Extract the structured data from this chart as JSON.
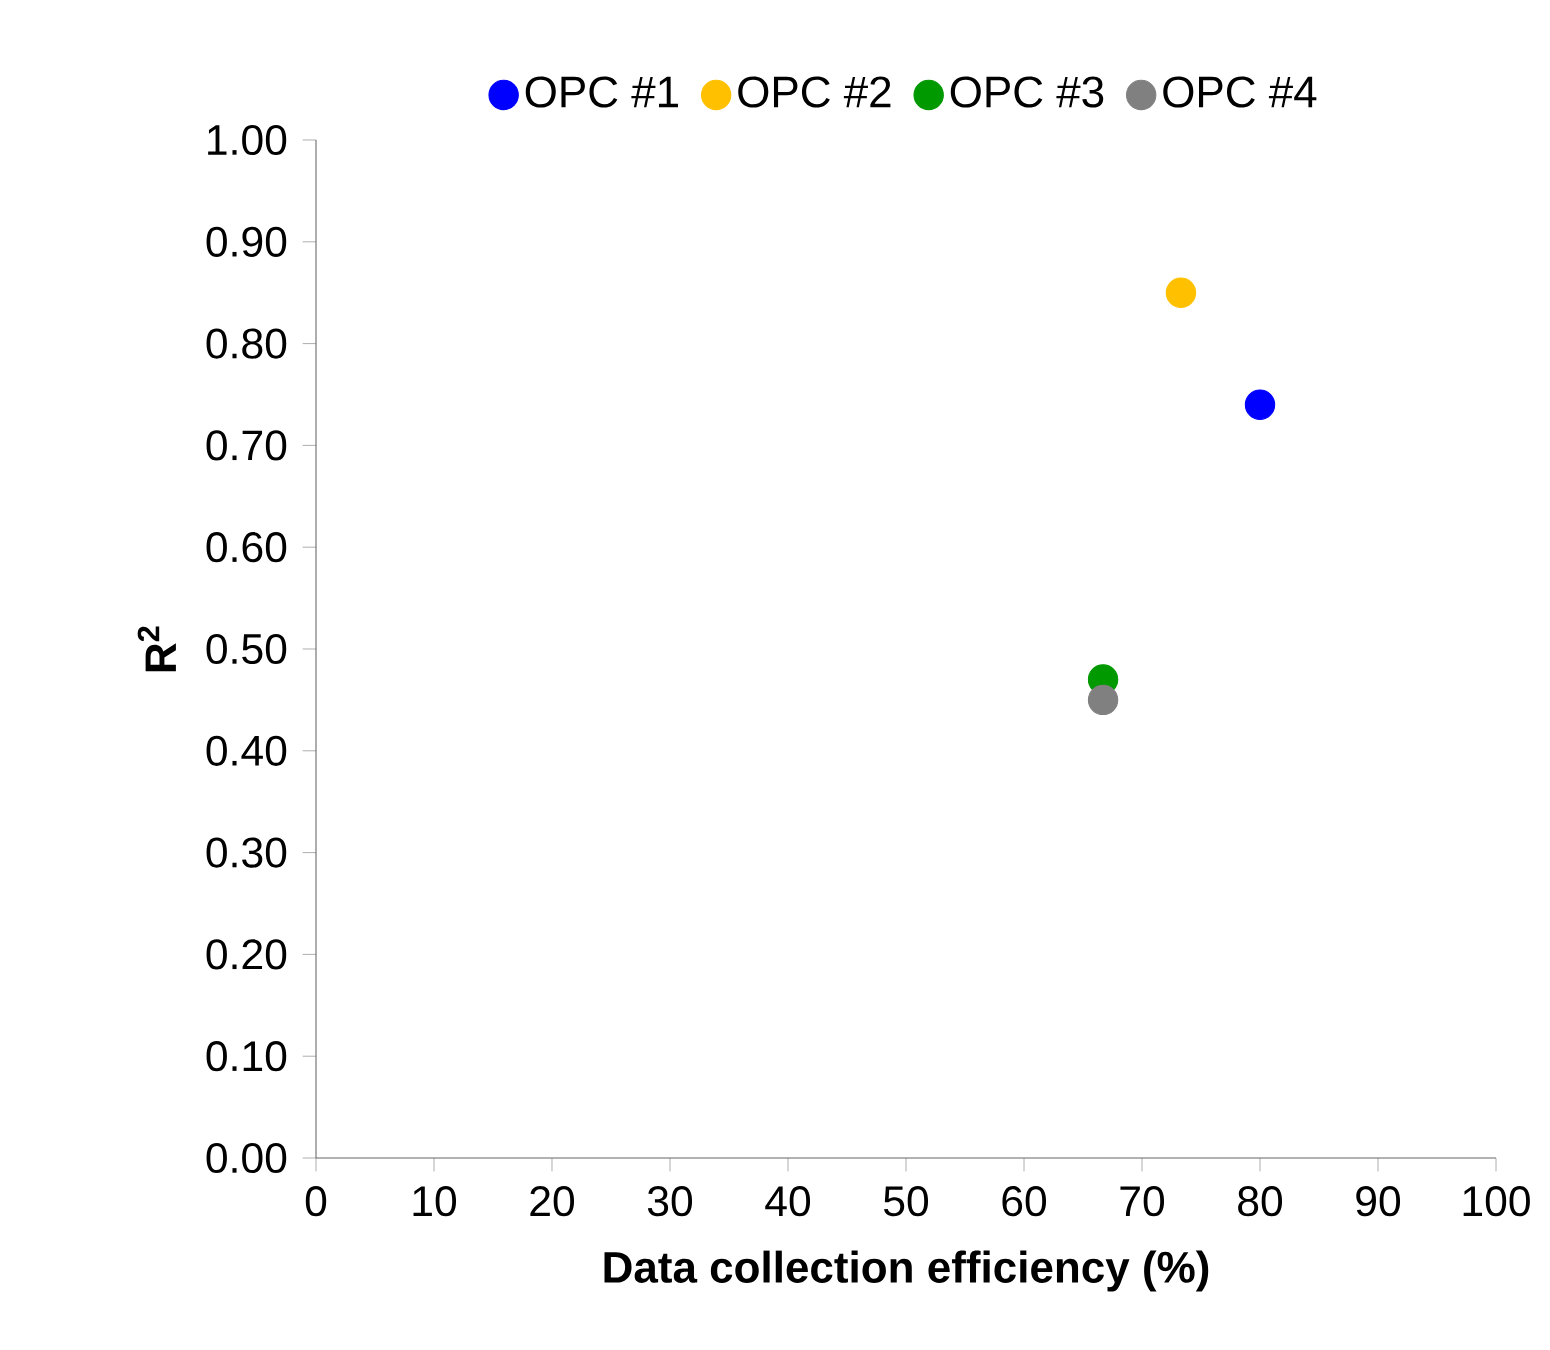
{
  "chart_data": {
    "type": "scatter",
    "xlabel": "Data collection efficiency (%)",
    "ylabel": "R$^{2}$",
    "marker": "circle",
    "legend": "top",
    "grid": false,
    "xlim": [
      0,
      100
    ],
    "xticks": [
      0,
      10,
      20,
      30,
      40,
      50,
      60,
      70,
      80,
      90,
      100
    ],
    "ylim": [
      0,
      1
    ],
    "yticks": [
      {
        "value": 0,
        "label": "0.00"
      },
      {
        "value": 0.1,
        "label": "0.10"
      },
      {
        "value": 0.2,
        "label": "0.20"
      },
      {
        "value": 0.3,
        "label": "0.30"
      },
      {
        "value": 0.4,
        "label": "0.40"
      },
      {
        "value": 0.5,
        "label": "0.50"
      },
      {
        "value": 0.6,
        "label": "0.60"
      },
      {
        "value": 0.7,
        "label": "0.70"
      },
      {
        "value": 0.8,
        "label": "0.80"
      },
      {
        "value": 0.9,
        "label": "0.90"
      },
      {
        "value": 1,
        "label": "1.00"
      }
    ],
    "series": [
      {
        "name": "OPC #1",
        "color": "#0000ff",
        "x": [
          80
        ],
        "values": [
          0.74
        ]
      },
      {
        "name": "OPC #2",
        "color": "#ffc000",
        "x": [
          73.3
        ],
        "values": [
          0.85
        ]
      },
      {
        "name": "OPC #3",
        "color": "#009900",
        "x": [
          66.7
        ],
        "values": [
          0.47
        ]
      },
      {
        "name": "OPC #4",
        "color": "#808080",
        "x": [
          66.7
        ],
        "values": [
          0.45
        ]
      }
    ]
  }
}
